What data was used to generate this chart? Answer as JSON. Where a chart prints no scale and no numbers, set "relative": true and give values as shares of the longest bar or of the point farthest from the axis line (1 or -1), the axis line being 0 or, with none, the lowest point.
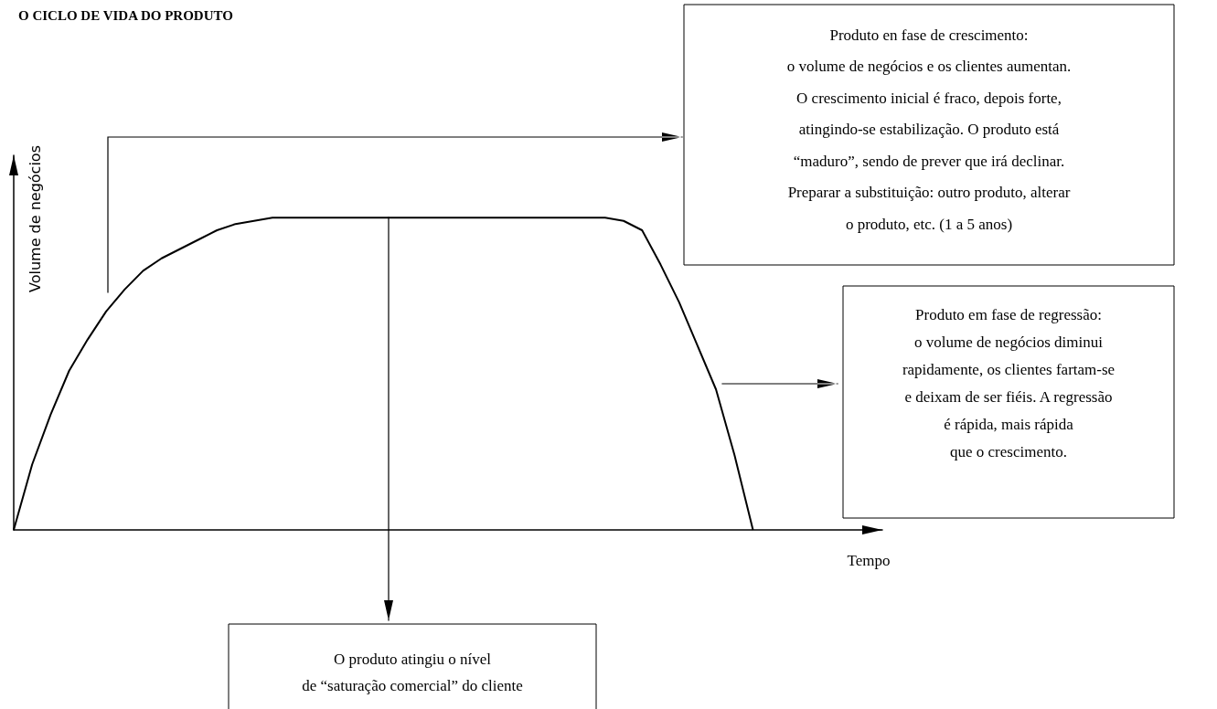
{
  "chart_data": {
    "type": "line",
    "title": "O CICLO DE VIDA DO PRODUTO",
    "xlabel": "Tempo",
    "ylabel": "Volume de negócios",
    "relative": true,
    "grid": false,
    "marker": "none",
    "line_style": "solid",
    "categories": [
      null,
      null,
      null,
      null,
      null,
      null,
      null,
      null,
      null,
      null,
      null,
      null,
      null,
      null,
      null,
      null,
      null,
      null,
      null,
      null,
      null,
      null,
      null,
      null,
      null,
      null,
      null,
      null,
      null,
      null,
      null,
      null,
      null,
      null,
      null,
      null,
      null,
      null,
      null,
      null,
      null,
      null,
      null,
      null,
      null,
      null,
      null,
      null
    ],
    "series": [
      {
        "color": "#000000",
        "values": [
          0,
          0.21,
          0.37,
          0.51,
          0.61,
          0.7,
          0.77,
          0.83,
          0.87,
          0.9,
          0.93,
          0.96,
          0.98,
          0.99,
          1,
          1,
          1,
          1,
          1,
          1,
          1,
          1,
          1,
          1,
          1,
          1,
          1,
          1,
          1,
          1,
          1,
          1,
          1,
          0.99,
          0.96,
          0.85,
          0.73,
          0.59,
          0.45,
          0.24,
          0,
          null,
          null,
          null,
          null,
          null,
          null,
          null
        ]
      }
    ],
    "annotations": [
      "Produto en fase de crescimento:\no volume de negócios e os clientes aumentan.\nO crescimento inicial é fraco, depois forte,\natingindo-se estabilização. O produto está\n“maduro”, sendo de prever que irá declinar.\nPreparar a substituição: outro produto, alterar\no produto, etc. (1 a 5 anos)",
      "Produto em fase de regressão:\no volume de negócios diminui\nrapidamente, os clientes fartam-se\ne deixam de ser fiéis. A regressão\né rápida, mais rápida\nque o crescimento.",
      "O produto atingiu o nível\nde “saturação comercial” do cliente"
    ]
  }
}
